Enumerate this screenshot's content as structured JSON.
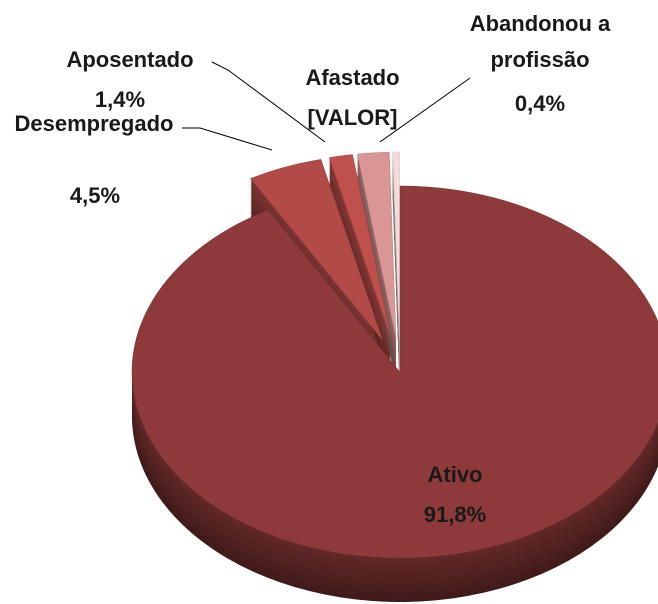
{
  "chart_data": {
    "type": "pie",
    "categories": [
      "Ativo",
      "Desempregado",
      "Aposentado",
      "Afastado",
      "Abandonou a profissão"
    ],
    "values": [
      91.8,
      4.5,
      1.4,
      1.9,
      0.4
    ],
    "value_labels": [
      "91,8%",
      "4,5%",
      "1,4%",
      "[VALOR]",
      "0,4%"
    ],
    "colors": [
      "#8e3a3a",
      "#b24a48",
      "#c0504d",
      "#d99694",
      "#f2dcdb"
    ]
  }
}
